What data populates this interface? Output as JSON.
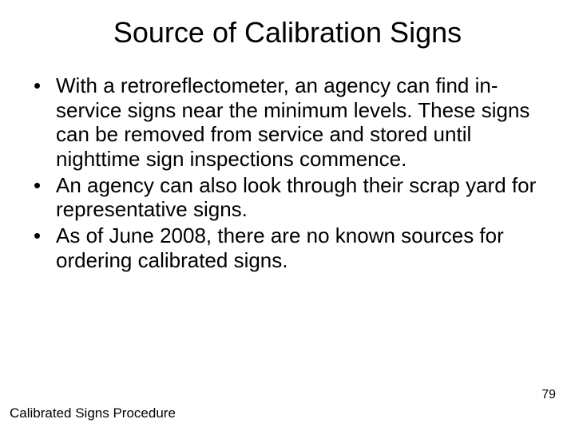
{
  "title": "Source of Calibration Signs",
  "bullets": [
    "With a retroreflectometer, an agency can find in-service signs near the minimum levels.  These signs can be removed from service and stored until nighttime sign inspections commence.",
    "An agency can also look through their scrap yard for representative signs.",
    "As of June 2008, there are no known sources for ordering calibrated signs."
  ],
  "footer_left": "Calibrated Signs Procedure",
  "page_number": "79",
  "colors": {
    "background": "#ffffff",
    "text": "#000000"
  },
  "typography": {
    "title_fontsize": 36,
    "body_fontsize": 26,
    "footer_fontsize": 17,
    "pagenum_fontsize": 16,
    "font_family": "Arial"
  }
}
